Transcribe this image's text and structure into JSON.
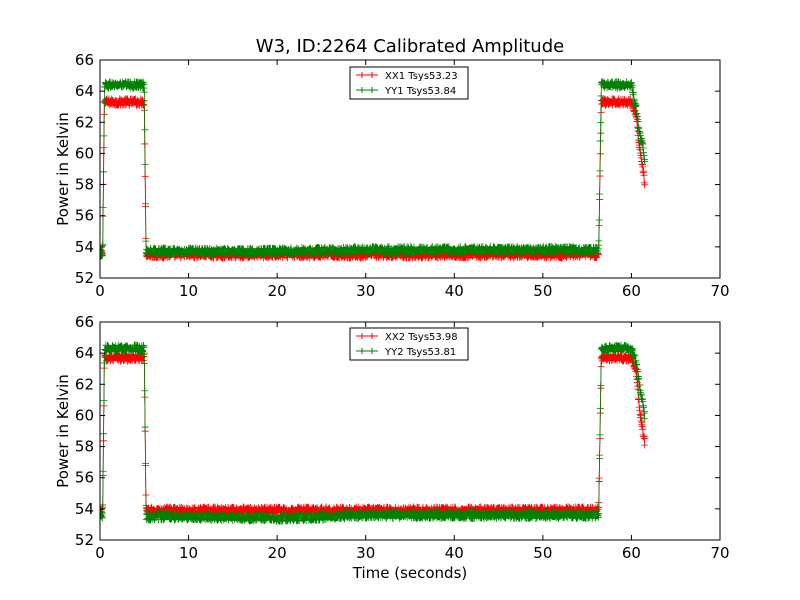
{
  "figure": {
    "title": "W3, ID:2264 Calibrated Amplitude"
  },
  "chart_data": [
    {
      "type": "line",
      "title": "W3, ID:2264 Calibrated Amplitude",
      "xlabel": "",
      "ylabel": "Power in Kelvin",
      "xlim": [
        0,
        70
      ],
      "ylim": [
        52,
        66
      ],
      "xticks": [
        0,
        10,
        20,
        30,
        40,
        50,
        60,
        70
      ],
      "yticks": [
        52,
        54,
        56,
        58,
        60,
        62,
        64,
        66
      ],
      "grid": false,
      "legend_position": "top-center",
      "marker": "plus",
      "series": [
        {
          "name": "XX1 Tsys53.23",
          "color": "#ff0000",
          "noise": 0.22,
          "x": [
            0,
            0.3,
            0.5,
            2,
            4,
            5.0,
            5.2,
            5.5,
            10,
            20,
            30,
            40,
            50,
            56.3,
            56.6,
            57,
            60,
            60.5,
            61.0,
            61.3,
            61.5
          ],
          "y": [
            53.6,
            53.6,
            63.3,
            63.3,
            63.3,
            63.3,
            53.6,
            53.5,
            53.5,
            53.5,
            53.5,
            53.5,
            53.5,
            53.5,
            63.3,
            63.3,
            63.3,
            62.5,
            60.0,
            59.0,
            58.0
          ]
        },
        {
          "name": "YY1 Tsys53.84",
          "color": "#008000",
          "noise": 0.22,
          "x": [
            0,
            0.3,
            0.5,
            2,
            4,
            5.0,
            5.2,
            5.5,
            10,
            20,
            30,
            40,
            50,
            56.3,
            56.6,
            57,
            60,
            60.5,
            61.0,
            61.3,
            61.5
          ],
          "y": [
            53.6,
            53.6,
            64.4,
            64.4,
            64.4,
            64.4,
            53.7,
            53.7,
            53.7,
            53.7,
            53.8,
            53.8,
            53.8,
            53.8,
            64.4,
            64.4,
            64.4,
            63.0,
            61.0,
            60.5,
            59.5
          ]
        }
      ]
    },
    {
      "type": "line",
      "title": "",
      "xlabel": "Time (seconds)",
      "ylabel": "Power in Kelvin",
      "xlim": [
        0,
        70
      ],
      "ylim": [
        52,
        66
      ],
      "xticks": [
        0,
        10,
        20,
        30,
        40,
        50,
        60,
        70
      ],
      "yticks": [
        52,
        54,
        56,
        58,
        60,
        62,
        64,
        66
      ],
      "grid": false,
      "legend_position": "top-center",
      "marker": "plus",
      "series": [
        {
          "name": "XX2 Tsys53.98",
          "color": "#ff0000",
          "noise": 0.22,
          "x": [
            0,
            0.3,
            0.5,
            2,
            4,
            5.0,
            5.2,
            5.5,
            10,
            20,
            30,
            40,
            50,
            56.3,
            56.6,
            57,
            60,
            60.5,
            61.0,
            61.3,
            61.5
          ],
          "y": [
            53.8,
            53.8,
            63.7,
            63.7,
            63.7,
            63.7,
            53.9,
            53.9,
            53.9,
            53.9,
            53.9,
            53.9,
            53.9,
            53.9,
            63.7,
            63.7,
            63.7,
            63.0,
            60.0,
            59.0,
            58.3
          ]
        },
        {
          "name": "YY2 Tsys53.81",
          "color": "#008000",
          "noise": 0.22,
          "x": [
            0,
            0.3,
            0.5,
            2,
            4,
            5.0,
            5.2,
            5.5,
            10,
            20,
            30,
            40,
            50,
            56.3,
            56.6,
            57,
            60,
            60.5,
            61.0,
            61.3,
            61.5
          ],
          "y": [
            53.6,
            53.6,
            64.3,
            64.3,
            64.3,
            64.3,
            53.5,
            53.5,
            53.5,
            53.4,
            53.6,
            53.6,
            53.6,
            53.6,
            64.3,
            64.3,
            64.3,
            63.5,
            61.5,
            60.8,
            60.0
          ]
        }
      ]
    }
  ]
}
